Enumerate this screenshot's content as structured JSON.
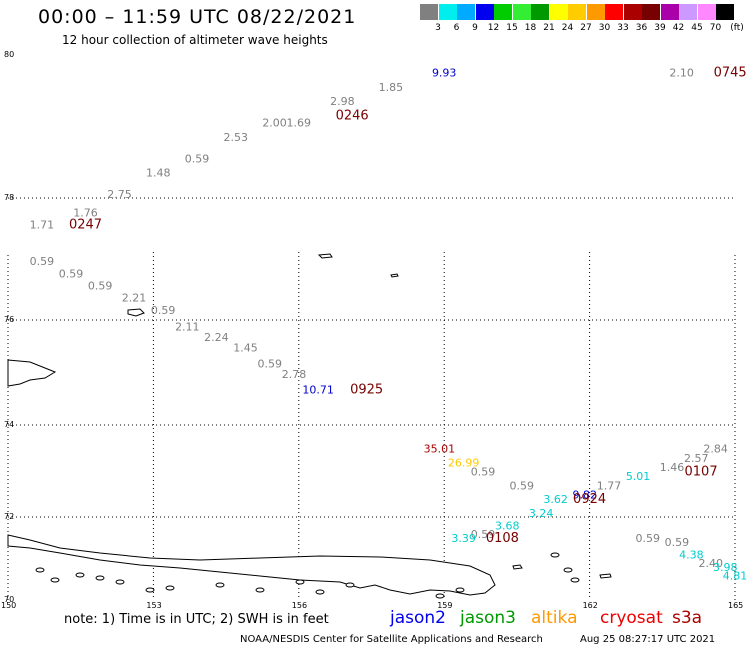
{
  "header": {
    "title": "00:00 – 11:59 UTC 08/22/2021",
    "subtitle": "12 hour collection of altimeter wave heights"
  },
  "legend": {
    "colors": [
      "#808080",
      "#00eeee",
      "#00aaff",
      "#0000ee",
      "#00cc00",
      "#33ee33",
      "#009900",
      "#ffff00",
      "#ffcc00",
      "#ff9900",
      "#ff0000",
      "#aa0000",
      "#770000",
      "#aa00aa",
      "#cc99ff",
      "#ff88ff",
      "#000000"
    ],
    "labels": [
      "3",
      "6",
      "9",
      "12",
      "15",
      "18",
      "21",
      "24",
      "27",
      "30",
      "33",
      "36",
      "39",
      "42",
      "45",
      "70"
    ],
    "unit": "(ft)"
  },
  "axes": {
    "lat_labels": [
      "80",
      "78",
      "76",
      "74",
      "72",
      "70"
    ],
    "lon_labels": [
      "150",
      "153",
      "156",
      "159",
      "162",
      "165"
    ]
  },
  "observations": [
    {
      "t": "1.71",
      "lon": 150.7,
      "lat": 77.5,
      "c": "#808080"
    },
    {
      "t": "1.76",
      "lon": 151.6,
      "lat": 77.7,
      "c": "#808080"
    },
    {
      "t": "2.75",
      "lon": 152.3,
      "lat": 78.0,
      "c": "#808080"
    },
    {
      "t": "1.48",
      "lon": 153.1,
      "lat": 78.3,
      "c": "#808080"
    },
    {
      "t": "0.59",
      "lon": 153.9,
      "lat": 78.5,
      "c": "#808080"
    },
    {
      "t": "2.53",
      "lon": 154.7,
      "lat": 78.8,
      "c": "#808080"
    },
    {
      "t": "2.00",
      "lon": 155.5,
      "lat": 79.0,
      "c": "#808080"
    },
    {
      "t": "1.69",
      "lon": 156.0,
      "lat": 79.0,
      "c": "#808080"
    },
    {
      "t": "2.98",
      "lon": 156.9,
      "lat": 79.3,
      "c": "#808080"
    },
    {
      "t": "1.85",
      "lon": 157.9,
      "lat": 79.5,
      "c": "#808080"
    },
    {
      "t": "9.93",
      "lon": 159.0,
      "lat": 79.7,
      "c": "#0000cc"
    },
    {
      "t": "2.10",
      "lon": 163.9,
      "lat": 79.7,
      "c": "#808080"
    },
    {
      "t": "0.59",
      "lon": 150.7,
      "lat": 76.9,
      "c": "#808080"
    },
    {
      "t": "0.59",
      "lon": 151.3,
      "lat": 76.7,
      "c": "#808080"
    },
    {
      "t": "0.59",
      "lon": 151.9,
      "lat": 76.5,
      "c": "#808080"
    },
    {
      "t": "2.21",
      "lon": 152.6,
      "lat": 76.3,
      "c": "#808080"
    },
    {
      "t": "0.59",
      "lon": 153.2,
      "lat": 76.1,
      "c": "#808080"
    },
    {
      "t": "2.11",
      "lon": 153.7,
      "lat": 75.8,
      "c": "#808080"
    },
    {
      "t": "2.24",
      "lon": 154.3,
      "lat": 75.6,
      "c": "#808080"
    },
    {
      "t": "1.45",
      "lon": 154.9,
      "lat": 75.4,
      "c": "#808080"
    },
    {
      "t": "0.59",
      "lon": 155.4,
      "lat": 75.1,
      "c": "#808080"
    },
    {
      "t": "2.78",
      "lon": 155.9,
      "lat": 74.9,
      "c": "#808080"
    },
    {
      "t": "10.71",
      "lon": 156.4,
      "lat": 74.6,
      "c": "#0000cc"
    },
    {
      "t": "35.01",
      "lon": 158.9,
      "lat": 73.4,
      "c": "#aa0000"
    },
    {
      "t": "26.99",
      "lon": 159.4,
      "lat": 73.1,
      "c": "#ffcc00"
    },
    {
      "t": "0.59",
      "lon": 159.8,
      "lat": 72.9,
      "c": "#808080"
    },
    {
      "t": "0.59",
      "lon": 160.6,
      "lat": 72.6,
      "c": "#808080"
    },
    {
      "t": "3.62",
      "lon": 161.3,
      "lat": 72.3,
      "c": "#00cccc"
    },
    {
      "t": "9.82",
      "lon": 161.9,
      "lat": 72.4,
      "c": "#0000cc"
    },
    {
      "t": "1.77",
      "lon": 162.4,
      "lat": 72.6,
      "c": "#808080"
    },
    {
      "t": "5.01",
      "lon": 163.0,
      "lat": 72.8,
      "c": "#00cccc"
    },
    {
      "t": "1.46",
      "lon": 163.7,
      "lat": 73.0,
      "c": "#808080"
    },
    {
      "t": "2.57",
      "lon": 164.2,
      "lat": 73.2,
      "c": "#808080"
    },
    {
      "t": "2.84",
      "lon": 164.6,
      "lat": 73.4,
      "c": "#808080"
    },
    {
      "t": "3.24",
      "lon": 161.0,
      "lat": 72.0,
      "c": "#00cccc"
    },
    {
      "t": "3.68",
      "lon": 160.3,
      "lat": 71.7,
      "c": "#00cccc"
    },
    {
      "t": "0.59",
      "lon": 159.8,
      "lat": 71.5,
      "c": "#808080"
    },
    {
      "t": "3.39",
      "lon": 159.4,
      "lat": 71.4,
      "c": "#00cccc"
    },
    {
      "t": "0.59",
      "lon": 163.2,
      "lat": 71.4,
      "c": "#808080"
    },
    {
      "t": "0.59",
      "lon": 163.8,
      "lat": 71.3,
      "c": "#808080"
    },
    {
      "t": "4.38",
      "lon": 164.1,
      "lat": 71.0,
      "c": "#00cccc"
    },
    {
      "t": "2.40",
      "lon": 164.5,
      "lat": 70.8,
      "c": "#808080"
    },
    {
      "t": "3.98",
      "lon": 164.8,
      "lat": 70.7,
      "c": "#00cccc"
    },
    {
      "t": "4.81",
      "lon": 165.0,
      "lat": 70.5,
      "c": "#00cccc"
    }
  ],
  "time_marks": [
    {
      "t": "0247",
      "lon": 151.6,
      "lat": 77.5
    },
    {
      "t": "0246",
      "lon": 157.1,
      "lat": 79.1
    },
    {
      "t": "0745",
      "lon": 164.9,
      "lat": 79.7
    },
    {
      "t": "0925",
      "lon": 157.4,
      "lat": 74.6
    },
    {
      "t": "0107",
      "lon": 164.3,
      "lat": 72.9
    },
    {
      "t": "0924",
      "lon": 162.0,
      "lat": 72.3
    },
    {
      "t": "0108",
      "lon": 160.2,
      "lat": 71.4
    }
  ],
  "footer": {
    "note": "note:  1) Time is in UTC; 2) SWH is in feet",
    "satellites": [
      {
        "name": "jason2",
        "color": "#0000ee"
      },
      {
        "name": "jason3",
        "color": "#009900"
      },
      {
        "name": "altika",
        "color": "#ff9900"
      },
      {
        "name": "cryosat",
        "color": "#ee0000"
      },
      {
        "name": "s3a",
        "color": "#aa0000"
      }
    ],
    "credit": "NOAA/NESDIS Center for Satellite Applications and Research",
    "timestamp": "Aug 25 08:27:17 UTC 2021"
  }
}
